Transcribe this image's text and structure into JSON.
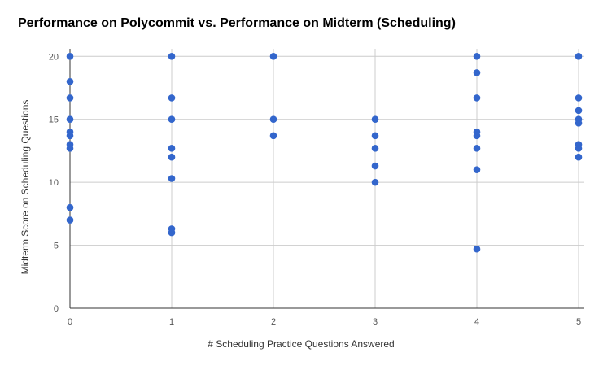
{
  "chart_data": {
    "type": "scatter",
    "title": "Performance on Polycommit vs. Performance on Midterm (Scheduling)",
    "xlabel": "# Scheduling Practice Questions Answered",
    "ylabel": "Midterm Score on Scheduling Questions",
    "xlim": [
      0,
      5
    ],
    "ylim": [
      0,
      20.6
    ],
    "x_ticks": [
      0,
      1,
      2,
      3,
      4,
      5
    ],
    "y_ticks": [
      0,
      5,
      10,
      15,
      20
    ],
    "grid": true,
    "legend": "none",
    "point_color": "#3366cc",
    "points": [
      {
        "x": 0,
        "y": 20
      },
      {
        "x": 0,
        "y": 18
      },
      {
        "x": 0,
        "y": 16.7
      },
      {
        "x": 0,
        "y": 15
      },
      {
        "x": 0,
        "y": 14
      },
      {
        "x": 0,
        "y": 13.7
      },
      {
        "x": 0,
        "y": 13
      },
      {
        "x": 0,
        "y": 12.7
      },
      {
        "x": 0,
        "y": 8
      },
      {
        "x": 0,
        "y": 7
      },
      {
        "x": 1,
        "y": 20
      },
      {
        "x": 1,
        "y": 16.7
      },
      {
        "x": 1,
        "y": 15
      },
      {
        "x": 1,
        "y": 12.7
      },
      {
        "x": 1,
        "y": 12
      },
      {
        "x": 1,
        "y": 10.3
      },
      {
        "x": 1,
        "y": 6.3
      },
      {
        "x": 1,
        "y": 6
      },
      {
        "x": 2,
        "y": 20
      },
      {
        "x": 2,
        "y": 15
      },
      {
        "x": 2,
        "y": 13.7
      },
      {
        "x": 3,
        "y": 15
      },
      {
        "x": 3,
        "y": 13.7
      },
      {
        "x": 3,
        "y": 12.7
      },
      {
        "x": 3,
        "y": 11.3
      },
      {
        "x": 3,
        "y": 10
      },
      {
        "x": 4,
        "y": 20
      },
      {
        "x": 4,
        "y": 18.7
      },
      {
        "x": 4,
        "y": 16.7
      },
      {
        "x": 4,
        "y": 14
      },
      {
        "x": 4,
        "y": 13.7
      },
      {
        "x": 4,
        "y": 12.7
      },
      {
        "x": 4,
        "y": 11
      },
      {
        "x": 4,
        "y": 4.7
      },
      {
        "x": 5,
        "y": 20
      },
      {
        "x": 5,
        "y": 16.7
      },
      {
        "x": 5,
        "y": 15.7
      },
      {
        "x": 5,
        "y": 15
      },
      {
        "x": 5,
        "y": 14.7
      },
      {
        "x": 5,
        "y": 13
      },
      {
        "x": 5,
        "y": 12.7
      },
      {
        "x": 5,
        "y": 12
      }
    ]
  }
}
